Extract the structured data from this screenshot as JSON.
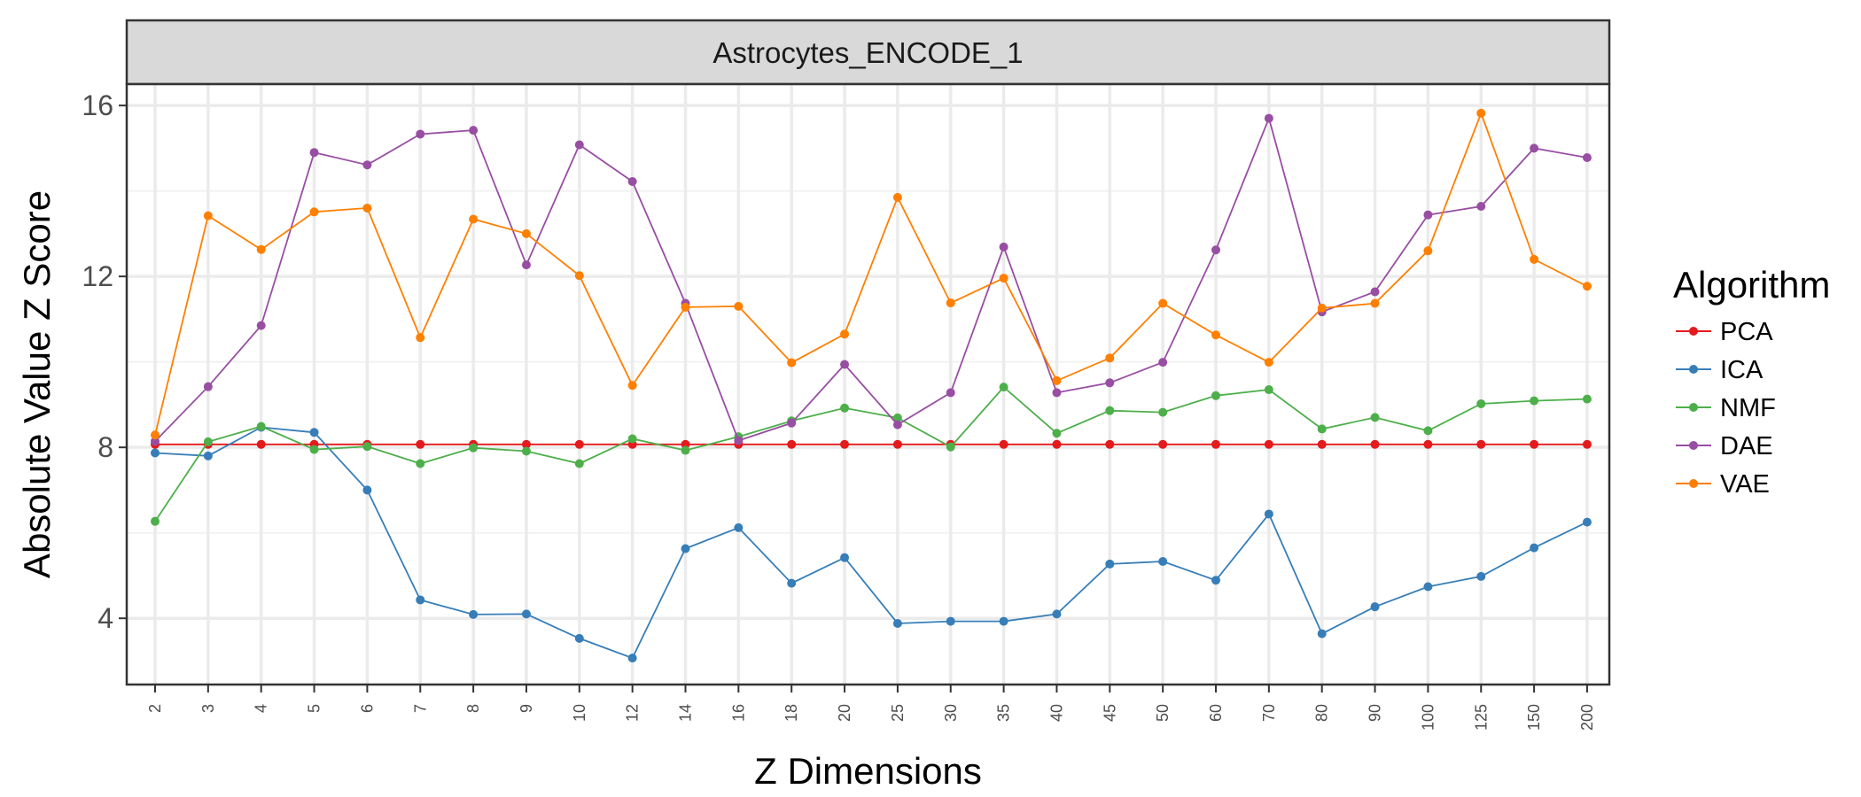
{
  "chart_data": {
    "type": "line",
    "facet_label": "Astrocytes_ENCODE_1",
    "xlabel": "Z Dimensions",
    "ylabel": "Absolute Value Z Score",
    "categories": [
      "2",
      "3",
      "4",
      "5",
      "6",
      "7",
      "8",
      "9",
      "10",
      "12",
      "14",
      "16",
      "18",
      "20",
      "25",
      "30",
      "35",
      "40",
      "45",
      "50",
      "60",
      "70",
      "80",
      "90",
      "100",
      "125",
      "150",
      "200"
    ],
    "yticks": [
      4,
      8,
      12,
      16
    ],
    "ylim": [
      2.45,
      16.5
    ],
    "grid": true,
    "legend": {
      "title": "Algorithm",
      "position": "right"
    },
    "series": [
      {
        "name": "PCA",
        "color": "#E41A1C",
        "values": [
          8.07,
          8.07,
          8.07,
          8.07,
          8.07,
          8.07,
          8.07,
          8.07,
          8.07,
          8.07,
          8.07,
          8.07,
          8.07,
          8.07,
          8.07,
          8.07,
          8.07,
          8.07,
          8.07,
          8.07,
          8.07,
          8.07,
          8.07,
          8.07,
          8.07,
          8.07,
          8.07,
          8.07
        ]
      },
      {
        "name": "ICA",
        "color": "#377EB8",
        "values": [
          7.87,
          7.8,
          8.47,
          8.35,
          7.0,
          4.43,
          4.09,
          4.1,
          3.53,
          3.07,
          5.63,
          6.12,
          4.82,
          5.42,
          3.88,
          3.93,
          3.93,
          4.1,
          5.27,
          5.33,
          4.89,
          6.44,
          3.64,
          4.27,
          4.74,
          4.98,
          5.65,
          6.25
        ]
      },
      {
        "name": "NMF",
        "color": "#4DAF4A",
        "values": [
          6.27,
          8.13,
          8.49,
          7.95,
          8.02,
          7.62,
          7.99,
          7.91,
          7.62,
          8.2,
          7.93,
          8.25,
          8.62,
          8.92,
          8.69,
          8.01,
          9.41,
          8.33,
          8.86,
          8.82,
          9.21,
          9.35,
          8.43,
          8.7,
          8.39,
          9.02,
          9.09,
          9.13
        ]
      },
      {
        "name": "DAE",
        "color": "#984EA3",
        "values": [
          8.14,
          9.42,
          10.85,
          14.9,
          14.61,
          15.33,
          15.42,
          12.27,
          15.08,
          14.22,
          11.37,
          8.16,
          8.57,
          9.94,
          8.53,
          9.28,
          12.69,
          9.28,
          9.51,
          9.99,
          12.62,
          15.7,
          11.17,
          11.64,
          13.44,
          13.64,
          15.0,
          14.78
        ]
      },
      {
        "name": "VAE",
        "color": "#FF7F00",
        "values": [
          8.29,
          13.42,
          12.63,
          13.51,
          13.6,
          10.57,
          13.34,
          13.0,
          12.02,
          9.45,
          11.28,
          11.3,
          9.98,
          10.65,
          13.85,
          11.38,
          11.96,
          9.56,
          10.09,
          11.37,
          10.63,
          9.99,
          11.26,
          11.37,
          12.6,
          15.82,
          12.4,
          11.77
        ]
      }
    ]
  }
}
